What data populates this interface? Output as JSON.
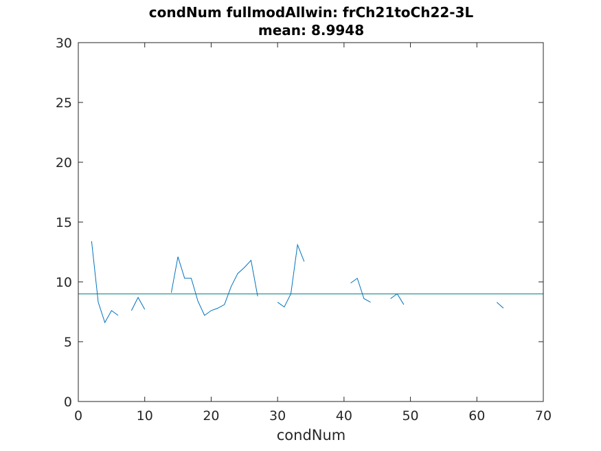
{
  "chart_data": {
    "type": "line",
    "title": "condNum fullmodAllwin: frCh21toCh22-3L",
    "subtitle": "mean: 8.9948",
    "xlabel": "condNum",
    "ylabel": "",
    "xlim": [
      0,
      70
    ],
    "ylim": [
      0,
      30
    ],
    "xticks": [
      0,
      10,
      20,
      30,
      40,
      50,
      60,
      70
    ],
    "yticks": [
      0,
      5,
      10,
      15,
      20,
      25,
      30
    ],
    "grid": false,
    "series": [
      {
        "color": "#0072BD",
        "points": [
          [
            2,
            13.4
          ],
          [
            3,
            8.3
          ],
          [
            4,
            6.6
          ],
          [
            5,
            7.6
          ],
          [
            6,
            7.2
          ],
          [
            7,
            null
          ],
          [
            8,
            7.6
          ],
          [
            9,
            8.7
          ],
          [
            10,
            7.7
          ],
          [
            11,
            null
          ],
          [
            12,
            null
          ],
          [
            13,
            null
          ],
          [
            14,
            9.1
          ],
          [
            15,
            12.1
          ],
          [
            16,
            10.3
          ],
          [
            17,
            10.3
          ],
          [
            18,
            8.4
          ],
          [
            19,
            7.2
          ],
          [
            20,
            7.6
          ],
          [
            21,
            7.8
          ],
          [
            22,
            8.1
          ],
          [
            23,
            9.6
          ],
          [
            24,
            10.7
          ],
          [
            25,
            11.2
          ],
          [
            26,
            11.8
          ],
          [
            27,
            8.8
          ],
          [
            28,
            null
          ],
          [
            29,
            null
          ],
          [
            30,
            8.3
          ],
          [
            31,
            7.9
          ],
          [
            32,
            9.0
          ],
          [
            33,
            13.1
          ],
          [
            34,
            11.7
          ],
          [
            35,
            null
          ],
          [
            36,
            null
          ],
          [
            37,
            null
          ],
          [
            38,
            null
          ],
          [
            39,
            null
          ],
          [
            40,
            null
          ],
          [
            41,
            9.9
          ],
          [
            42,
            10.3
          ],
          [
            43,
            8.6
          ],
          [
            44,
            8.3
          ],
          [
            45,
            null
          ],
          [
            46,
            null
          ],
          [
            47,
            8.6
          ],
          [
            48,
            9.0
          ],
          [
            49,
            8.1
          ],
          [
            50,
            null
          ],
          [
            51,
            null
          ],
          [
            52,
            null
          ],
          [
            53,
            null
          ],
          [
            54,
            null
          ],
          [
            55,
            null
          ],
          [
            56,
            null
          ],
          [
            57,
            null
          ],
          [
            58,
            null
          ],
          [
            59,
            null
          ],
          [
            60,
            null
          ],
          [
            61,
            null
          ],
          [
            62,
            null
          ],
          [
            63,
            8.3
          ],
          [
            64,
            7.8
          ]
        ]
      }
    ],
    "reference_lines": [
      {
        "y": 8.9948,
        "color": "#008080"
      },
      {
        "y": 30,
        "color": "#CC0000"
      }
    ]
  }
}
